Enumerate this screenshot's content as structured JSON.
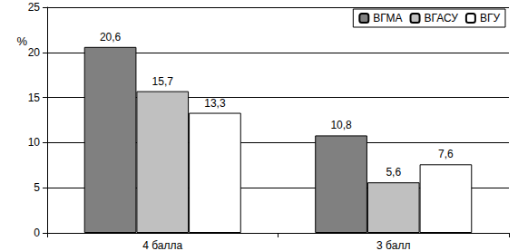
{
  "chart_data": {
    "type": "bar",
    "y_label": "%",
    "categories": [
      "4 балла",
      "3 балл"
    ],
    "series": [
      {
        "name": "ВГМА",
        "color": "#808080",
        "values": [
          20.6,
          10.8
        ],
        "value_labels": [
          "20,6",
          "10,8"
        ]
      },
      {
        "name": "ВГАСУ",
        "color": "#c0c0c0",
        "values": [
          15.7,
          5.6
        ],
        "value_labels": [
          "15,7",
          "5,6"
        ]
      },
      {
        "name": "ВГУ",
        "color": "#ffffff",
        "values": [
          13.3,
          7.6
        ],
        "value_labels": [
          "13,3",
          "7,6"
        ]
      }
    ],
    "ylim": [
      0,
      25
    ],
    "yticks": [
      0,
      5,
      10,
      15,
      20,
      25
    ],
    "grid": true,
    "legend": "upper right",
    "data_labels": true
  }
}
